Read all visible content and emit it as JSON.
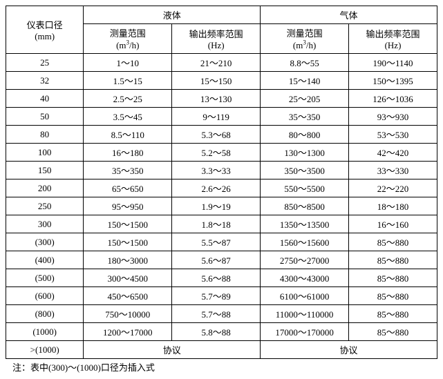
{
  "table": {
    "header": {
      "caliber": "仪表口径",
      "caliber_unit": "(mm)",
      "liquid_group": "液体",
      "gas_group": "气体",
      "measure_range": "测量范围",
      "measure_unit_prefix": "(m",
      "measure_unit_sup": "3",
      "measure_unit_suffix": "/h)",
      "freq_range": "输出频率范围",
      "freq_unit": "(Hz)"
    },
    "rows": [
      {
        "caliber": "25",
        "lm": "1～10",
        "lf": "21～210",
        "gm": "8.8～55",
        "gf": "190～1140"
      },
      {
        "caliber": "32",
        "lm": "1.5～15",
        "lf": "15～150",
        "gm": "15～140",
        "gf": "150～1395"
      },
      {
        "caliber": "40",
        "lm": "2.5～25",
        "lf": "13～130",
        "gm": "25～205",
        "gf": "126～1036"
      },
      {
        "caliber": "50",
        "lm": "3.5～45",
        "lf": "9～119",
        "gm": "35～350",
        "gf": "93～930"
      },
      {
        "caliber": "80",
        "lm": "8.5～110",
        "lf": "5.3～68",
        "gm": "80～800",
        "gf": "53～530"
      },
      {
        "caliber": "100",
        "lm": "16～180",
        "lf": "5.2～58",
        "gm": "130～1300",
        "gf": "42～420"
      },
      {
        "caliber": "150",
        "lm": "35～350",
        "lf": "3.3～33",
        "gm": "350～3500",
        "gf": "33～330"
      },
      {
        "caliber": "200",
        "lm": "65～650",
        "lf": "2.6～26",
        "gm": "550～5500",
        "gf": "22～220"
      },
      {
        "caliber": "250",
        "lm": "95～950",
        "lf": "1.9～19",
        "gm": "850～8500",
        "gf": "18～180"
      },
      {
        "caliber": "300",
        "lm": "150～1500",
        "lf": "1.8～18",
        "gm": "1350～13500",
        "gf": "16～160"
      },
      {
        "caliber": "(300)",
        "lm": "150～1500",
        "lf": "5.5～87",
        "gm": "1560～15600",
        "gf": "85～880"
      },
      {
        "caliber": "(400)",
        "lm": "180～3000",
        "lf": "5.6～87",
        "gm": "2750～27000",
        "gf": "85～880"
      },
      {
        "caliber": "(500)",
        "lm": "300～4500",
        "lf": "5.6～88",
        "gm": "4300～43000",
        "gf": "85～880"
      },
      {
        "caliber": "(600)",
        "lm": "450～6500",
        "lf": "5.7～89",
        "gm": "6100～61000",
        "gf": "85～880"
      },
      {
        "caliber": "(800)",
        "lm": "750～10000",
        "lf": "5.7～88",
        "gm": "11000～110000",
        "gf": "85～880"
      },
      {
        "caliber": "(1000)",
        "lm": "1200～17000",
        "lf": "5.8～88",
        "gm": "17000～170000",
        "gf": "85～880"
      }
    ],
    "last_row": {
      "caliber": ">(1000)",
      "liquid": "协议",
      "gas": "协议"
    }
  },
  "footnote": "注：表中(300)～(1000)口径为插入式"
}
